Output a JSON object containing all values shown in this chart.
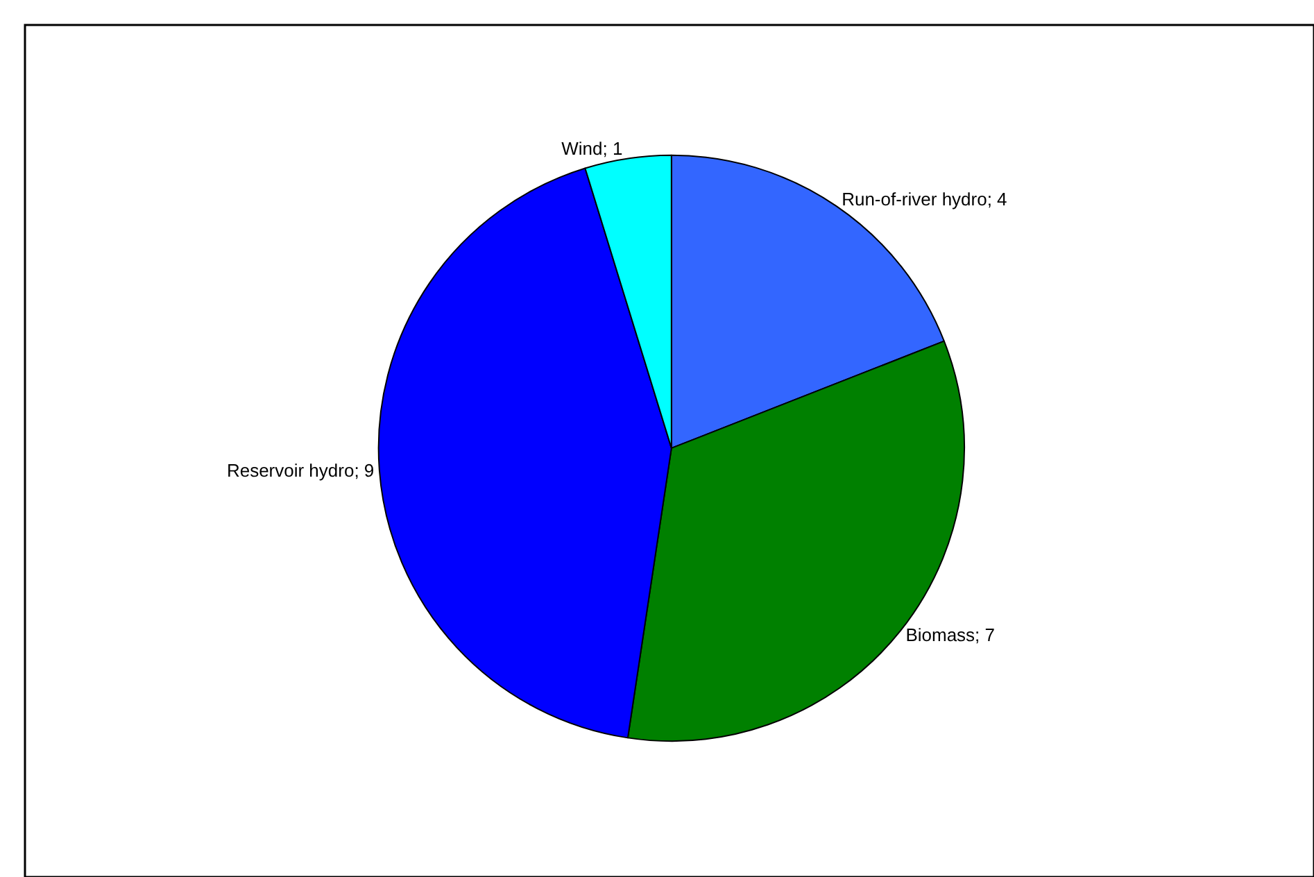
{
  "chart_data": {
    "type": "pie",
    "categories": [
      "Run-of-river hydro",
      "Biomass",
      "Reservoir hydro",
      "Wind"
    ],
    "values": [
      4,
      7,
      9,
      1
    ],
    "colors": [
      "#3366ff",
      "#008000",
      "#0000ff",
      "#00ffff"
    ],
    "value_labels": [
      "; 4",
      "; 7",
      "; 9",
      "; 1"
    ],
    "legend": false
  }
}
